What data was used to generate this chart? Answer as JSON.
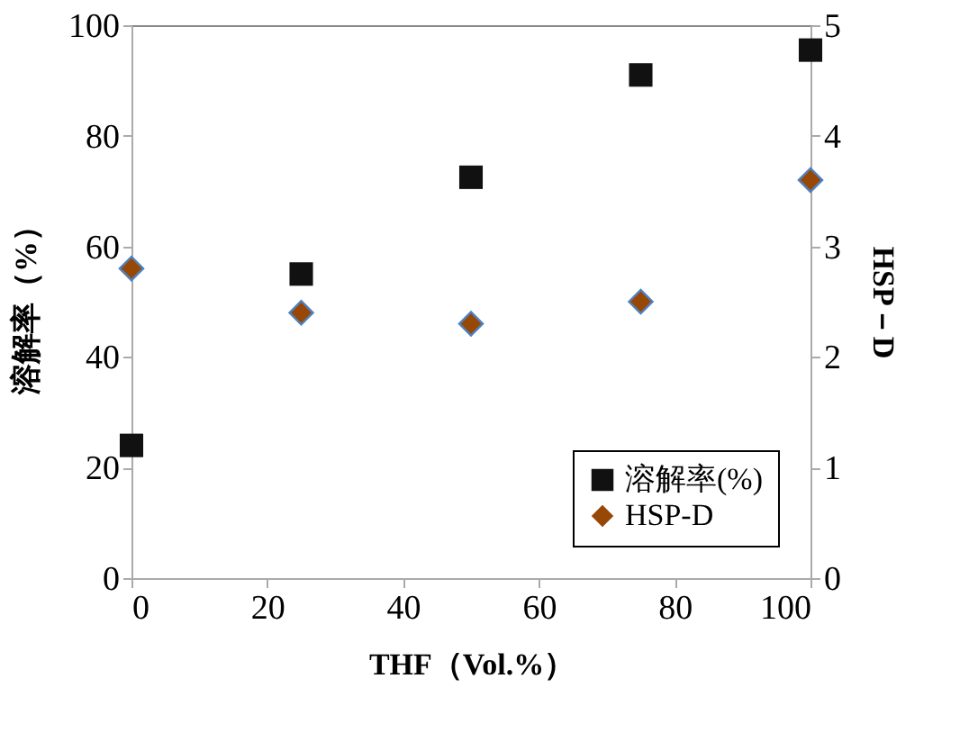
{
  "chart_data": {
    "type": "scatter",
    "xlabel": "THF（Vol.%）",
    "ylabel": "溶解率（%）",
    "y2label": "HSP－D",
    "x": [
      0,
      25,
      50,
      75,
      100
    ],
    "series": [
      {
        "name": "溶解率(%)",
        "color": "#111111",
        "values": [
          24,
          55,
          72.5,
          91,
          95.5
        ],
        "marker": "square"
      },
      {
        "name": "HSP-D",
        "color": "#974706",
        "values": [
          2.8,
          2.4,
          2.3,
          2.5,
          3.6
        ],
        "marker": "diamond",
        "axis": "y2"
      }
    ],
    "xlim": [
      0,
      100
    ],
    "xticks": [
      0,
      20,
      40,
      60,
      80,
      100
    ],
    "ylim": [
      0,
      100
    ],
    "yticks": [
      0,
      20,
      40,
      60,
      80,
      100
    ],
    "y2lim": [
      0,
      5
    ],
    "y2ticks": [
      0,
      1,
      2,
      3,
      4,
      5
    ],
    "grid": false,
    "legend": "bottom right"
  }
}
